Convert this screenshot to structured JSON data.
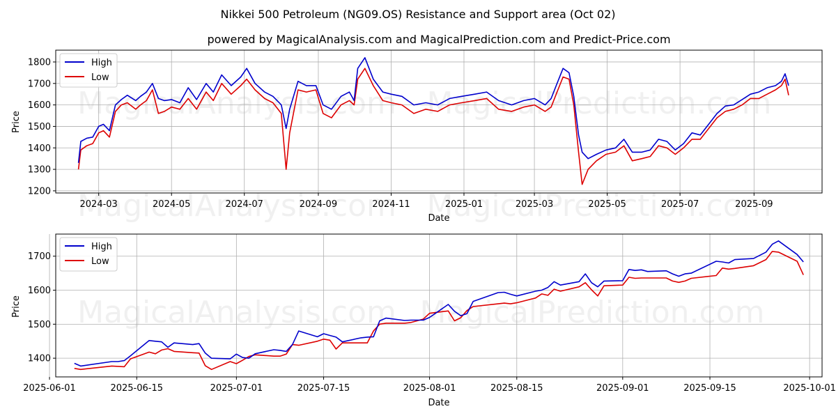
{
  "title": "Nikkei 500 Petroleum (NG09.OS) Resistance and Support area (Oct 02)",
  "subtitle": "powered by MagicalAnalysis.com and MagicalPrediction.com and Predict-Price.com",
  "watermark": [
    "MagicalAnalysis.com",
    "MagicalPrediction.com"
  ],
  "colors": {
    "high": "#0000cc",
    "low": "#dd0000"
  },
  "chart_data": [
    {
      "type": "line",
      "xlabel": "Date",
      "ylabel": "Price",
      "xlim": [
        "2024-01-25",
        "2025-10-28"
      ],
      "ylim": [
        1190,
        1855
      ],
      "yticks": [
        1200,
        1300,
        1400,
        1500,
        1600,
        1700,
        1800
      ],
      "xticks": [
        "2024-03-01",
        "2024-05-01",
        "2024-07-01",
        "2024-09-01",
        "2024-11-01",
        "2025-01-01",
        "2025-03-01",
        "2025-05-01",
        "2025-07-01",
        "2025-09-01"
      ],
      "xtick_labels": [
        "2024-03",
        "2024-05",
        "2024-07",
        "2024-09",
        "2024-11",
        "2025-01",
        "2025-03",
        "2025-05",
        "2025-07",
        "2025-09"
      ],
      "legend": {
        "position": "top-left",
        "entries": [
          "High",
          "Low"
        ]
      },
      "grid": true,
      "series": [
        {
          "name": "High",
          "x": [
            "2024-02-13",
            "2024-02-15",
            "2024-02-20",
            "2024-02-25",
            "2024-03-01",
            "2024-03-05",
            "2024-03-10",
            "2024-03-15",
            "2024-03-20",
            "2024-03-25",
            "2024-04-01",
            "2024-04-05",
            "2024-04-10",
            "2024-04-15",
            "2024-04-20",
            "2024-04-25",
            "2024-05-01",
            "2024-05-08",
            "2024-05-15",
            "2024-05-22",
            "2024-05-30",
            "2024-06-05",
            "2024-06-12",
            "2024-06-20",
            "2024-06-28",
            "2024-07-03",
            "2024-07-10",
            "2024-07-18",
            "2024-07-25",
            "2024-08-01",
            "2024-08-05",
            "2024-08-08",
            "2024-08-15",
            "2024-08-22",
            "2024-08-30",
            "2024-09-05",
            "2024-09-12",
            "2024-09-20",
            "2024-09-27",
            "2024-10-01",
            "2024-10-04",
            "2024-10-10",
            "2024-10-17",
            "2024-10-25",
            "2024-11-01",
            "2024-11-10",
            "2024-11-20",
            "2024-11-30",
            "2024-12-10",
            "2024-12-20",
            "2024-12-30",
            "2025-01-10",
            "2025-01-20",
            "2025-01-30",
            "2025-02-10",
            "2025-02-20",
            "2025-03-01",
            "2025-03-10",
            "2025-03-15",
            "2025-03-20",
            "2025-03-25",
            "2025-03-30",
            "2025-04-03",
            "2025-04-07",
            "2025-04-10",
            "2025-04-15",
            "2025-04-22",
            "2025-04-30",
            "2025-05-08",
            "2025-05-15",
            "2025-05-22",
            "2025-05-30",
            "2025-06-06",
            "2025-06-13",
            "2025-06-20",
            "2025-06-27",
            "2025-07-04",
            "2025-07-11",
            "2025-07-18",
            "2025-07-25",
            "2025-08-01",
            "2025-08-08",
            "2025-08-15",
            "2025-08-22",
            "2025-08-29",
            "2025-09-05",
            "2025-09-12",
            "2025-09-19",
            "2025-09-24",
            "2025-09-27",
            "2025-09-30"
          ],
          "values": [
            1330,
            1430,
            1445,
            1450,
            1500,
            1510,
            1480,
            1600,
            1625,
            1645,
            1620,
            1640,
            1660,
            1700,
            1630,
            1620,
            1625,
            1610,
            1680,
            1625,
            1700,
            1660,
            1740,
            1690,
            1730,
            1770,
            1700,
            1660,
            1640,
            1600,
            1490,
            1580,
            1710,
            1690,
            1690,
            1600,
            1580,
            1640,
            1660,
            1620,
            1770,
            1820,
            1720,
            1660,
            1650,
            1640,
            1600,
            1610,
            1600,
            1630,
            1640,
            1650,
            1660,
            1620,
            1600,
            1620,
            1630,
            1600,
            1630,
            1700,
            1770,
            1750,
            1640,
            1460,
            1380,
            1350,
            1370,
            1390,
            1400,
            1440,
            1380,
            1380,
            1390,
            1440,
            1430,
            1390,
            1420,
            1470,
            1460,
            1510,
            1560,
            1595,
            1600,
            1625,
            1650,
            1660,
            1680,
            1690,
            1710,
            1745,
            1690
          ]
        },
        {
          "name": "Low",
          "x": [
            "2024-02-13",
            "2024-02-15",
            "2024-02-20",
            "2024-02-25",
            "2024-03-01",
            "2024-03-05",
            "2024-03-10",
            "2024-03-15",
            "2024-03-20",
            "2024-03-25",
            "2024-04-01",
            "2024-04-05",
            "2024-04-10",
            "2024-04-15",
            "2024-04-20",
            "2024-04-25",
            "2024-05-01",
            "2024-05-08",
            "2024-05-15",
            "2024-05-22",
            "2024-05-30",
            "2024-06-05",
            "2024-06-12",
            "2024-06-20",
            "2024-06-28",
            "2024-07-03",
            "2024-07-10",
            "2024-07-18",
            "2024-07-25",
            "2024-08-01",
            "2024-08-05",
            "2024-08-08",
            "2024-08-15",
            "2024-08-22",
            "2024-08-30",
            "2024-09-05",
            "2024-09-12",
            "2024-09-20",
            "2024-09-27",
            "2024-10-01",
            "2024-10-04",
            "2024-10-10",
            "2024-10-17",
            "2024-10-25",
            "2024-11-01",
            "2024-11-10",
            "2024-11-20",
            "2024-11-30",
            "2024-12-10",
            "2024-12-20",
            "2024-12-30",
            "2025-01-10",
            "2025-01-20",
            "2025-01-30",
            "2025-02-10",
            "2025-02-20",
            "2025-03-01",
            "2025-03-10",
            "2025-03-15",
            "2025-03-20",
            "2025-03-25",
            "2025-03-30",
            "2025-04-03",
            "2025-04-07",
            "2025-04-10",
            "2025-04-15",
            "2025-04-22",
            "2025-04-30",
            "2025-05-08",
            "2025-05-15",
            "2025-05-22",
            "2025-05-30",
            "2025-06-06",
            "2025-06-13",
            "2025-06-20",
            "2025-06-27",
            "2025-07-04",
            "2025-07-11",
            "2025-07-18",
            "2025-07-25",
            "2025-08-01",
            "2025-08-08",
            "2025-08-15",
            "2025-08-22",
            "2025-08-29",
            "2025-09-05",
            "2025-09-12",
            "2025-09-19",
            "2025-09-24",
            "2025-09-27",
            "2025-09-30"
          ],
          "values": [
            1300,
            1390,
            1410,
            1420,
            1470,
            1480,
            1450,
            1570,
            1600,
            1610,
            1580,
            1600,
            1620,
            1670,
            1560,
            1570,
            1590,
            1580,
            1630,
            1580,
            1660,
            1620,
            1700,
            1650,
            1690,
            1720,
            1670,
            1630,
            1610,
            1560,
            1300,
            1470,
            1670,
            1660,
            1670,
            1560,
            1540,
            1600,
            1620,
            1600,
            1720,
            1770,
            1690,
            1620,
            1610,
            1600,
            1560,
            1580,
            1570,
            1600,
            1610,
            1620,
            1630,
            1580,
            1570,
            1590,
            1600,
            1570,
            1590,
            1660,
            1730,
            1720,
            1600,
            1380,
            1230,
            1300,
            1340,
            1370,
            1380,
            1410,
            1340,
            1350,
            1360,
            1410,
            1400,
            1370,
            1400,
            1440,
            1440,
            1490,
            1540,
            1570,
            1580,
            1600,
            1630,
            1630,
            1650,
            1670,
            1690,
            1720,
            1645
          ]
        }
      ]
    },
    {
      "type": "line",
      "xlabel": "Date",
      "ylabel": "Price",
      "xlim": [
        "2025-06-02",
        "2025-10-03"
      ],
      "ylim": [
        1345,
        1765
      ],
      "yticks": [
        1400,
        1500,
        1600,
        1700
      ],
      "xticks": [
        "2025-06-01",
        "2025-06-15",
        "2025-07-01",
        "2025-07-15",
        "2025-08-01",
        "2025-08-15",
        "2025-09-01",
        "2025-09-15",
        "2025-10-01"
      ],
      "xtick_labels": [
        "2025-06-01",
        "2025-06-15",
        "2025-07-01",
        "2025-07-15",
        "2025-08-01",
        "2025-08-15",
        "2025-09-01",
        "2025-09-15",
        "2025-10-01"
      ],
      "legend": {
        "position": "top-left",
        "entries": [
          "High",
          "Low"
        ]
      },
      "grid": true,
      "series": [
        {
          "name": "High",
          "x": [
            "2025-06-05",
            "2025-06-06",
            "2025-06-11",
            "2025-06-12",
            "2025-06-13",
            "2025-06-14",
            "2025-06-17",
            "2025-06-18",
            "2025-06-19",
            "2025-06-20",
            "2025-06-21",
            "2025-06-24",
            "2025-06-25",
            "2025-06-26",
            "2025-06-27",
            "2025-06-30",
            "2025-07-01",
            "2025-07-02",
            "2025-07-03",
            "2025-07-04",
            "2025-07-07",
            "2025-07-08",
            "2025-07-09",
            "2025-07-10",
            "2025-07-11",
            "2025-07-14",
            "2025-07-15",
            "2025-07-16",
            "2025-07-17",
            "2025-07-18",
            "2025-07-21",
            "2025-07-22",
            "2025-07-23",
            "2025-07-24",
            "2025-07-25",
            "2025-07-28",
            "2025-07-29",
            "2025-07-30",
            "2025-07-31",
            "2025-08-01",
            "2025-08-04",
            "2025-08-05",
            "2025-08-06",
            "2025-08-07",
            "2025-08-08",
            "2025-08-12",
            "2025-08-13",
            "2025-08-14",
            "2025-08-15",
            "2025-08-18",
            "2025-08-19",
            "2025-08-20",
            "2025-08-21",
            "2025-08-22",
            "2025-08-25",
            "2025-08-26",
            "2025-08-27",
            "2025-08-28",
            "2025-08-29",
            "2025-09-01",
            "2025-09-02",
            "2025-09-03",
            "2025-09-04",
            "2025-09-05",
            "2025-09-08",
            "2025-09-09",
            "2025-09-10",
            "2025-09-11",
            "2025-09-12",
            "2025-09-16",
            "2025-09-17",
            "2025-09-18",
            "2025-09-19",
            "2025-09-22",
            "2025-09-24",
            "2025-09-25",
            "2025-09-26",
            "2025-09-29",
            "2025-09-30"
          ],
          "values": [
            1385,
            1377,
            1390,
            1390,
            1393,
            1407,
            1452,
            1450,
            1448,
            1432,
            1445,
            1440,
            1443,
            1415,
            1400,
            1398,
            1412,
            1402,
            1400,
            1413,
            1425,
            1423,
            1420,
            1440,
            1480,
            1463,
            1472,
            1467,
            1462,
            1448,
            1460,
            1462,
            1463,
            1510,
            1518,
            1511,
            1512,
            1512,
            1512,
            1520,
            1558,
            1538,
            1525,
            1531,
            1567,
            1593,
            1594,
            1588,
            1583,
            1597,
            1600,
            1608,
            1625,
            1615,
            1625,
            1648,
            1622,
            1610,
            1627,
            1628,
            1661,
            1658,
            1660,
            1655,
            1657,
            1648,
            1641,
            1648,
            1650,
            1685,
            1683,
            1680,
            1690,
            1693,
            1712,
            1735,
            1745,
            1705,
            1683
          ]
        },
        {
          "name": "Low",
          "x": [
            "2025-06-05",
            "2025-06-06",
            "2025-06-11",
            "2025-06-12",
            "2025-06-13",
            "2025-06-14",
            "2025-06-17",
            "2025-06-18",
            "2025-06-19",
            "2025-06-20",
            "2025-06-21",
            "2025-06-24",
            "2025-06-25",
            "2025-06-26",
            "2025-06-27",
            "2025-06-30",
            "2025-07-01",
            "2025-07-02",
            "2025-07-03",
            "2025-07-04",
            "2025-07-07",
            "2025-07-08",
            "2025-07-09",
            "2025-07-10",
            "2025-07-11",
            "2025-07-14",
            "2025-07-15",
            "2025-07-16",
            "2025-07-17",
            "2025-07-18",
            "2025-07-21",
            "2025-07-22",
            "2025-07-23",
            "2025-07-24",
            "2025-07-25",
            "2025-07-28",
            "2025-07-29",
            "2025-07-30",
            "2025-07-31",
            "2025-08-01",
            "2025-08-04",
            "2025-08-05",
            "2025-08-06",
            "2025-08-07",
            "2025-08-08",
            "2025-08-12",
            "2025-08-13",
            "2025-08-14",
            "2025-08-15",
            "2025-08-18",
            "2025-08-19",
            "2025-08-20",
            "2025-08-21",
            "2025-08-22",
            "2025-08-25",
            "2025-08-26",
            "2025-08-27",
            "2025-08-28",
            "2025-08-29",
            "2025-09-01",
            "2025-09-02",
            "2025-09-03",
            "2025-09-04",
            "2025-09-05",
            "2025-09-08",
            "2025-09-09",
            "2025-09-10",
            "2025-09-11",
            "2025-09-12",
            "2025-09-16",
            "2025-09-17",
            "2025-09-18",
            "2025-09-19",
            "2025-09-22",
            "2025-09-24",
            "2025-09-25",
            "2025-09-26",
            "2025-09-29",
            "2025-09-30"
          ],
          "values": [
            1370,
            1367,
            1377,
            1376,
            1375,
            1398,
            1418,
            1413,
            1424,
            1428,
            1420,
            1416,
            1415,
            1378,
            1367,
            1390,
            1384,
            1394,
            1405,
            1410,
            1406,
            1406,
            1412,
            1440,
            1438,
            1450,
            1456,
            1453,
            1427,
            1445,
            1445,
            1445,
            1480,
            1500,
            1503,
            1503,
            1505,
            1510,
            1515,
            1532,
            1539,
            1510,
            1519,
            1540,
            1552,
            1560,
            1562,
            1560,
            1563,
            1577,
            1589,
            1585,
            1603,
            1597,
            1610,
            1622,
            1601,
            1583,
            1613,
            1615,
            1638,
            1635,
            1636,
            1636,
            1636,
            1627,
            1623,
            1627,
            1635,
            1643,
            1665,
            1662,
            1664,
            1672,
            1690,
            1714,
            1712,
            1685,
            1645
          ]
        }
      ]
    }
  ]
}
